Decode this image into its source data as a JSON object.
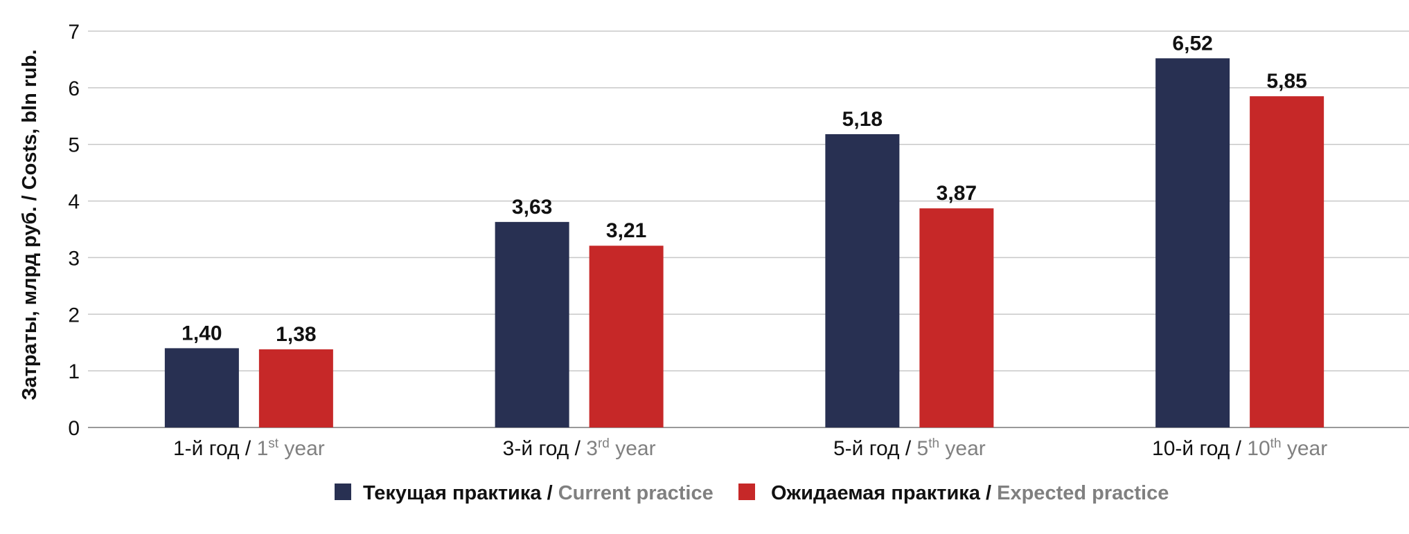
{
  "colors": {
    "current": "#283052",
    "expected": "#c62828",
    "grid": "#c8c8c8",
    "axis": "#999999",
    "english_text": "#808080",
    "main_text": "#111111"
  },
  "chart_data": {
    "type": "bar",
    "categories": [
      {
        "ru": "1-й год / ",
        "num": "1",
        "sup": "st",
        "en": " year"
      },
      {
        "ru": "3-й год / ",
        "num": "3",
        "sup": "rd",
        "en": " year"
      },
      {
        "ru": "5-й год / ",
        "num": "5",
        "sup": "th",
        "en": " year"
      },
      {
        "ru": "10-й год / ",
        "num": "10",
        "sup": "th",
        "en": " year"
      }
    ],
    "series": [
      {
        "name_ru": "Текущая практика / ",
        "name_en": "Current practice",
        "values": [
          1.4,
          3.63,
          5.18,
          6.52
        ],
        "labels": [
          "1,40",
          "3,63",
          "5,18",
          "6,52"
        ]
      },
      {
        "name_ru": "Ожидаемая практика / ",
        "name_en": "Expected practice",
        "values": [
          1.38,
          3.21,
          3.87,
          5.85
        ],
        "labels": [
          "1,38",
          "3,21",
          "3,87",
          "5,85"
        ]
      }
    ],
    "ylabel_ru": "Затраты, млрд руб. / ",
    "ylabel_en": "Costs, bln rub.",
    "ylim": [
      0,
      7
    ],
    "yticks": [
      0,
      1,
      2,
      3,
      4,
      5,
      6,
      7
    ],
    "grid": true,
    "legend": "bottom-center"
  }
}
